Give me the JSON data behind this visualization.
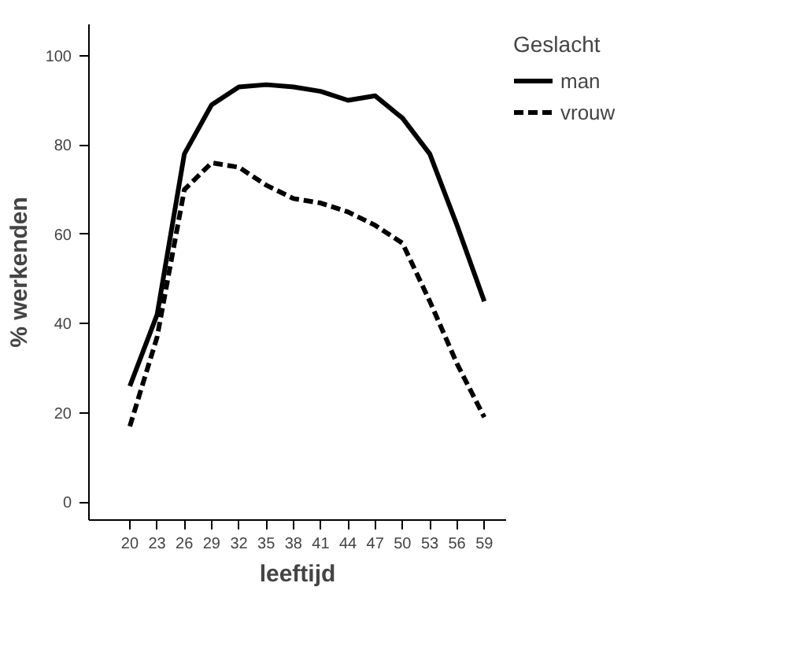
{
  "chart_data": {
    "type": "line",
    "xlabel": "leeftijd",
    "ylabel": "% werkenden",
    "legend_title": "Geslacht",
    "legend": "top right",
    "grid": false,
    "marker": "none",
    "categories": [
      "20",
      "23",
      "26",
      "29",
      "32",
      "35",
      "38",
      "41",
      "44",
      "47",
      "50",
      "53",
      "56",
      "59"
    ],
    "ylim": [
      -4,
      107
    ],
    "yticks": [
      0,
      20,
      40,
      60,
      80,
      100
    ],
    "series": [
      {
        "name": "man",
        "color": "#000000",
        "line_style": "solid",
        "values": [
          26,
          42,
          78,
          89,
          93,
          93.5,
          93,
          92,
          90,
          91,
          86,
          78,
          62,
          45
        ]
      },
      {
        "name": "vrouw",
        "color": "#000000",
        "line_style": "dashed",
        "values": [
          17,
          37,
          70,
          76,
          75,
          71,
          68,
          67,
          65,
          62,
          58,
          45,
          31,
          19
        ]
      }
    ]
  }
}
